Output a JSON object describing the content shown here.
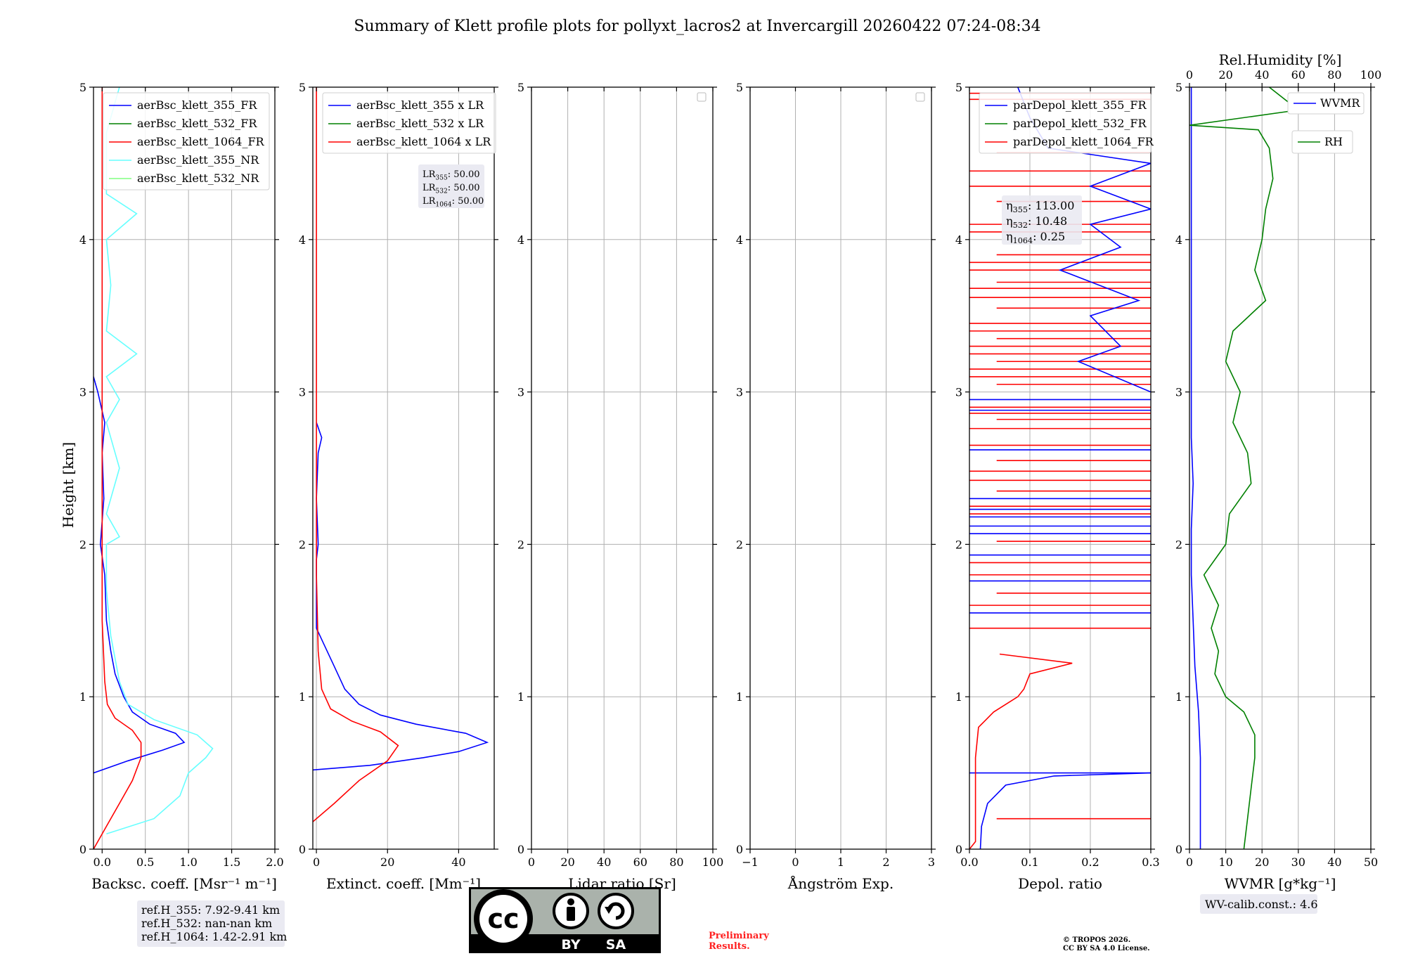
{
  "title": "Summary of Klett profile plots for pollyxt_lacros2 at Invercargill 20260422 07:24-08:34",
  "ylabel": "Height [km]",
  "ylim": [
    0,
    5
  ],
  "yticks": [
    0,
    1,
    2,
    3,
    4,
    5
  ],
  "colors": {
    "c355": "#0000ff",
    "c532": "#008000",
    "c1064": "#ff0000",
    "c355nr": "#66ffff",
    "c532nr": "#80ff80",
    "grid": "#b0b0b0",
    "infobox": "#eaeaf2",
    "preliminary": "#ff2020"
  },
  "chart_data": [
    {
      "type": "line",
      "id": "bsc",
      "xlabel": "Backsc. coeff. [Msr⁻¹ m⁻¹]",
      "xlim": [
        -0.1,
        2.0
      ],
      "xticks": [
        0.0,
        0.5,
        1.0,
        1.5,
        2.0
      ],
      "xticklabels": [
        "0.0",
        "0.5",
        "1.0",
        "1.5",
        "2.0"
      ],
      "legend": [
        "aerBsc_klett_355_FR",
        "aerBsc_klett_532_FR",
        "aerBsc_klett_1064_FR",
        "aerBsc_klett_355_NR",
        "aerBsc_klett_532_NR"
      ],
      "series": [
        {
          "name": "aerBsc_klett_355_FR",
          "color": "c355",
          "points": [
            [
              -0.1,
              0.5
            ],
            [
              0.3,
              0.58
            ],
            [
              0.7,
              0.65
            ],
            [
              0.95,
              0.7
            ],
            [
              0.85,
              0.76
            ],
            [
              0.55,
              0.82
            ],
            [
              0.35,
              0.9
            ],
            [
              0.25,
              1.0
            ],
            [
              0.15,
              1.15
            ],
            [
              0.1,
              1.3
            ],
            [
              0.05,
              1.5
            ],
            [
              0.03,
              1.8
            ],
            [
              -0.02,
              2.0
            ],
            [
              0.02,
              2.3
            ],
            [
              0.0,
              2.6
            ],
            [
              0.03,
              2.8
            ],
            [
              -0.05,
              3.0
            ],
            [
              -0.1,
              3.1
            ]
          ]
        },
        {
          "name": "aerBsc_klett_1064_FR",
          "color": "c1064",
          "points": [
            [
              -0.1,
              0.0
            ],
            [
              0.05,
              0.15
            ],
            [
              0.2,
              0.3
            ],
            [
              0.35,
              0.45
            ],
            [
              0.45,
              0.6
            ],
            [
              0.45,
              0.7
            ],
            [
              0.35,
              0.78
            ],
            [
              0.15,
              0.86
            ],
            [
              0.06,
              0.95
            ],
            [
              0.03,
              1.1
            ],
            [
              0.0,
              1.5
            ],
            [
              0.0,
              2.0
            ],
            [
              0.0,
              3.0
            ],
            [
              0.0,
              4.0
            ],
            [
              0.0,
              5.0
            ]
          ]
        },
        {
          "name": "aerBsc_klett_355_NR",
          "color": "c355nr",
          "points": [
            [
              0.05,
              0.1
            ],
            [
              0.6,
              0.2
            ],
            [
              0.9,
              0.35
            ],
            [
              1.0,
              0.5
            ],
            [
              1.2,
              0.6
            ],
            [
              1.28,
              0.66
            ],
            [
              1.1,
              0.75
            ],
            [
              0.6,
              0.85
            ],
            [
              0.3,
              0.95
            ],
            [
              0.2,
              1.1
            ],
            [
              0.1,
              1.4
            ],
            [
              0.05,
              1.7
            ],
            [
              0.05,
              2.0
            ],
            [
              0.2,
              2.05
            ],
            [
              0.05,
              2.2
            ],
            [
              0.2,
              2.5
            ],
            [
              0.05,
              2.8
            ],
            [
              0.2,
              2.95
            ],
            [
              0.05,
              3.1
            ],
            [
              0.4,
              3.25
            ],
            [
              0.05,
              3.4
            ],
            [
              0.1,
              3.7
            ],
            [
              0.05,
              4.0
            ],
            [
              0.4,
              4.17
            ],
            [
              0.05,
              4.3
            ],
            [
              0.05,
              4.7
            ],
            [
              0.15,
              4.9
            ],
            [
              0.2,
              5.0
            ]
          ]
        }
      ]
    },
    {
      "type": "line",
      "id": "ext",
      "xlabel": "Extinct. coeff. [Mm⁻¹]",
      "xlim": [
        -1,
        50
      ],
      "xticks": [
        0,
        20,
        40
      ],
      "xticklabels": [
        "0",
        "20",
        "40"
      ],
      "legend": [
        "aerBsc_klett_355 x LR",
        "aerBsc_klett_532 x LR",
        "aerBsc_klett_1064 x LR"
      ],
      "annotation": [
        "LR355: 50.00",
        "LR532: 50.00",
        "LR1064: 50.00"
      ],
      "series": [
        {
          "name": "aerBsc_klett_355 x LR",
          "color": "c355",
          "points": [
            [
              -1,
              0.52
            ],
            [
              15,
              0.55
            ],
            [
              30,
              0.6
            ],
            [
              40,
              0.64
            ],
            [
              48,
              0.7
            ],
            [
              42,
              0.76
            ],
            [
              28,
              0.82
            ],
            [
              18,
              0.88
            ],
            [
              12,
              0.95
            ],
            [
              8,
              1.05
            ],
            [
              5,
              1.2
            ],
            [
              2,
              1.35
            ],
            [
              0,
              1.45
            ],
            [
              0,
              1.9
            ],
            [
              0.5,
              2.0
            ],
            [
              0,
              2.3
            ],
            [
              0.5,
              2.6
            ],
            [
              1.5,
              2.7
            ],
            [
              0,
              2.8
            ]
          ]
        },
        {
          "name": "aerBsc_klett_1064 x LR",
          "color": "c1064",
          "points": [
            [
              -1,
              0.18
            ],
            [
              5,
              0.3
            ],
            [
              12,
              0.45
            ],
            [
              20,
              0.58
            ],
            [
              23,
              0.68
            ],
            [
              18,
              0.77
            ],
            [
              10,
              0.84
            ],
            [
              4,
              0.92
            ],
            [
              1.5,
              1.05
            ],
            [
              0.5,
              1.3
            ],
            [
              0,
              1.8
            ],
            [
              0,
              3
            ],
            [
              0,
              4
            ],
            [
              0,
              5
            ]
          ]
        }
      ]
    },
    {
      "type": "line",
      "id": "lr",
      "xlabel": "Lidar ratio [Sr]",
      "xlim": [
        0,
        100
      ],
      "xticks": [
        0,
        20,
        40,
        60,
        80,
        100
      ],
      "xticklabels": [
        "0",
        "20",
        "40",
        "60",
        "80",
        "100"
      ],
      "series": []
    },
    {
      "type": "line",
      "id": "ang",
      "xlabel": "Ångström Exp.",
      "xlim": [
        -1,
        3
      ],
      "xticks": [
        -1,
        0,
        1,
        2,
        3
      ],
      "xticklabels": [
        "−1",
        "0",
        "1",
        "2",
        "3"
      ],
      "series": []
    },
    {
      "type": "line",
      "id": "dep",
      "xlabel": "Depol. ratio",
      "xlim": [
        0.0,
        0.3
      ],
      "xticks": [
        0.0,
        0.1,
        0.2,
        0.3
      ],
      "xticklabels": [
        "0.0",
        "0.1",
        "0.2",
        "0.3"
      ],
      "legend": [
        "parDepol_klett_355_FR",
        "parDepol_klett_532_FR",
        "parDepol_klett_1064_FR"
      ],
      "annotation": [
        "η355: 113.00",
        "η532: 10.48",
        "η1064: 0.25"
      ],
      "series": [
        {
          "name": "parDepol_klett_355_FR",
          "color": "c355",
          "points": [
            [
              0.018,
              0.0
            ],
            [
              0.02,
              0.15
            ],
            [
              0.03,
              0.3
            ],
            [
              0.06,
              0.42
            ],
            [
              0.14,
              0.48
            ],
            [
              0.3,
              0.5
            ]
          ]
        },
        {
          "name": "parDepol_klett_355_FR_upper",
          "color": "c355",
          "points": [
            [
              0.3,
              3.0
            ],
            [
              0.18,
              3.2
            ],
            [
              0.25,
              3.3
            ],
            [
              0.2,
              3.5
            ],
            [
              0.28,
              3.6
            ],
            [
              0.15,
              3.8
            ],
            [
              0.25,
              3.95
            ],
            [
              0.2,
              4.1
            ],
            [
              0.3,
              4.2
            ],
            [
              0.2,
              4.35
            ],
            [
              0.3,
              4.5
            ],
            [
              0.13,
              4.6
            ],
            [
              0.1,
              4.8
            ],
            [
              0.08,
              5.0
            ]
          ]
        },
        {
          "name": "parDepol_klett_1064_FR",
          "color": "c1064",
          "points": [
            [
              0.0,
              0.0
            ],
            [
              0.01,
              0.05
            ],
            [
              0.01,
              0.1
            ],
            [
              0.01,
              0.6
            ],
            [
              0.015,
              0.8
            ],
            [
              0.04,
              0.9
            ],
            [
              0.08,
              1.0
            ],
            [
              0.09,
              1.05
            ],
            [
              0.1,
              1.15
            ],
            [
              0.17,
              1.22
            ],
            [
              0.05,
              1.28
            ]
          ]
        }
      ],
      "hlines_355": [
        0.5,
        1.55,
        1.76,
        1.93,
        2.07,
        2.12,
        2.18,
        2.23,
        2.3,
        2.62,
        2.88,
        2.95
      ],
      "hlines_1064": [
        0.2,
        1.45,
        1.6,
        1.68,
        1.8,
        1.88,
        2.02,
        2.2,
        2.25,
        2.35,
        2.42,
        2.48,
        2.55,
        2.65,
        2.76,
        2.82,
        2.86,
        2.9,
        3.05,
        3.1,
        3.15,
        3.2,
        3.25,
        3.3,
        3.35,
        3.4,
        3.45,
        3.55,
        3.62,
        3.68,
        3.72,
        3.8,
        3.85,
        3.9,
        4.05,
        4.1,
        4.25,
        4.35,
        4.45,
        4.57,
        4.92,
        4.96
      ]
    },
    {
      "type": "line",
      "id": "wv",
      "xlabel": "WVMR [g*kg⁻¹]",
      "xlim": [
        0,
        50
      ],
      "xticks": [
        0,
        10,
        20,
        30,
        40,
        50
      ],
      "xticklabels": [
        "0",
        "10",
        "20",
        "30",
        "40",
        "50"
      ],
      "x2label": "Rel.Humidity [%]",
      "x2lim": [
        0,
        100
      ],
      "x2ticks": [
        0,
        20,
        40,
        60,
        80,
        100
      ],
      "x2ticklabels": [
        "0",
        "20",
        "40",
        "60",
        "80",
        "100"
      ],
      "legend_wvmr": "WVMR",
      "legend_rh": "RH",
      "annotation": "WV-calib.const.: 4.6",
      "series": [
        {
          "name": "WVMR",
          "color": "c355",
          "axis": "x",
          "points": [
            [
              3,
              0.0
            ],
            [
              3,
              0.3
            ],
            [
              3,
              0.6
            ],
            [
              2.5,
              0.9
            ],
            [
              1.5,
              1.2
            ],
            [
              1,
              1.5
            ],
            [
              0.5,
              1.8
            ],
            [
              0.5,
              2.1
            ],
            [
              1,
              2.4
            ],
            [
              0.5,
              2.7
            ],
            [
              0.5,
              3.0
            ],
            [
              0.5,
              3.5
            ],
            [
              0.5,
              4.0
            ],
            [
              0.5,
              4.5
            ],
            [
              0.5,
              5.0
            ]
          ]
        },
        {
          "name": "RH",
          "color": "c532",
          "axis": "x2",
          "points": [
            [
              30,
              0.0
            ],
            [
              32,
              0.2
            ],
            [
              34,
              0.4
            ],
            [
              36,
              0.6
            ],
            [
              36,
              0.75
            ],
            [
              30,
              0.9
            ],
            [
              20,
              1.0
            ],
            [
              14,
              1.15
            ],
            [
              16,
              1.3
            ],
            [
              12,
              1.45
            ],
            [
              16,
              1.6
            ],
            [
              8,
              1.8
            ],
            [
              20,
              2.0
            ],
            [
              22,
              2.2
            ],
            [
              34,
              2.4
            ],
            [
              32,
              2.6
            ],
            [
              24,
              2.8
            ],
            [
              28,
              3.0
            ],
            [
              20,
              3.2
            ],
            [
              24,
              3.4
            ],
            [
              42,
              3.6
            ],
            [
              36,
              3.8
            ],
            [
              40,
              4.0
            ],
            [
              42,
              4.2
            ],
            [
              46,
              4.4
            ],
            [
              44,
              4.6
            ],
            [
              38,
              4.72
            ],
            [
              0,
              4.75
            ],
            [
              60,
              4.85
            ],
            [
              44,
              5.0
            ]
          ]
        }
      ]
    }
  ],
  "refbox": [
    "ref.H_355: 7.92-9.41 km",
    "ref.H_532: nan-nan km",
    "ref.H_1064: 1.42-2.91 km"
  ],
  "license": {
    "cc": "cc",
    "by": "BY",
    "sa": "SA"
  },
  "preliminary": [
    "Preliminary",
    "Results."
  ],
  "copyright": [
    "© TROPOS 2026.",
    "CC BY SA 4.0 License."
  ]
}
